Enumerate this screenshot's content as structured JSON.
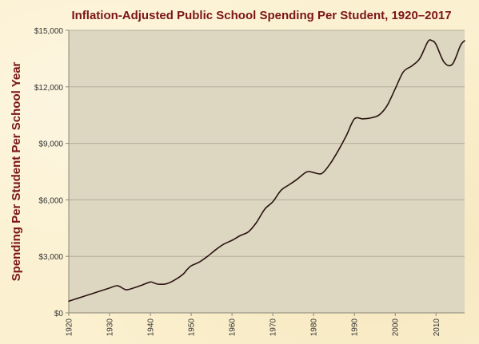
{
  "chart_data": {
    "type": "line",
    "title": "Inflation-Adjusted Public School Spending Per Student, 1920–2017",
    "xlabel": "",
    "ylabel": "Spending Per Student Per School Year",
    "xlim": [
      1920,
      2017
    ],
    "ylim": [
      0,
      15000
    ],
    "grid": "horizontal",
    "x_ticks": [
      1920,
      1930,
      1940,
      1950,
      1960,
      1970,
      1980,
      1990,
      2000,
      2010
    ],
    "x_tick_labels": [
      "1920",
      "1930",
      "1940",
      "1950",
      "1960",
      "1970",
      "1980",
      "1990",
      "2000",
      "2010"
    ],
    "y_ticks": [
      0,
      3000,
      6000,
      9000,
      12000,
      15000
    ],
    "y_tick_labels": [
      "$0",
      "$3,000",
      "$6,000",
      "$9,000",
      "$12,000",
      "$15,000"
    ],
    "colors": {
      "plot_bg": "#ddd6c1",
      "line": "#2a1410",
      "grid": "#b3ad9c",
      "title": "#7a1515"
    },
    "series": [
      {
        "x": [
          1920,
          1922,
          1924,
          1926,
          1928,
          1930,
          1932,
          1934,
          1936,
          1938,
          1940,
          1941,
          1942,
          1944,
          1946,
          1948,
          1949,
          1950,
          1952,
          1954,
          1956,
          1958,
          1960,
          1962,
          1964,
          1966,
          1968,
          1970,
          1972,
          1974,
          1976,
          1978,
          1979,
          1980,
          1982,
          1984,
          1986,
          1988,
          1990,
          1992,
          1994,
          1996,
          1998,
          2000,
          2002,
          2004,
          2006,
          2008,
          2009,
          2010,
          2012,
          2014,
          2016,
          2017
        ],
        "y": [
          620,
          760,
          900,
          1040,
          1180,
          1320,
          1440,
          1230,
          1330,
          1480,
          1640,
          1580,
          1520,
          1550,
          1750,
          2050,
          2300,
          2500,
          2700,
          3000,
          3350,
          3650,
          3850,
          4100,
          4300,
          4800,
          5500,
          5900,
          6500,
          6800,
          7100,
          7450,
          7500,
          7450,
          7400,
          7900,
          8600,
          9400,
          10300,
          10300,
          10350,
          10500,
          11000,
          11900,
          12800,
          13100,
          13500,
          14400,
          14450,
          14250,
          13300,
          13200,
          14200,
          14450
        ]
      }
    ]
  }
}
